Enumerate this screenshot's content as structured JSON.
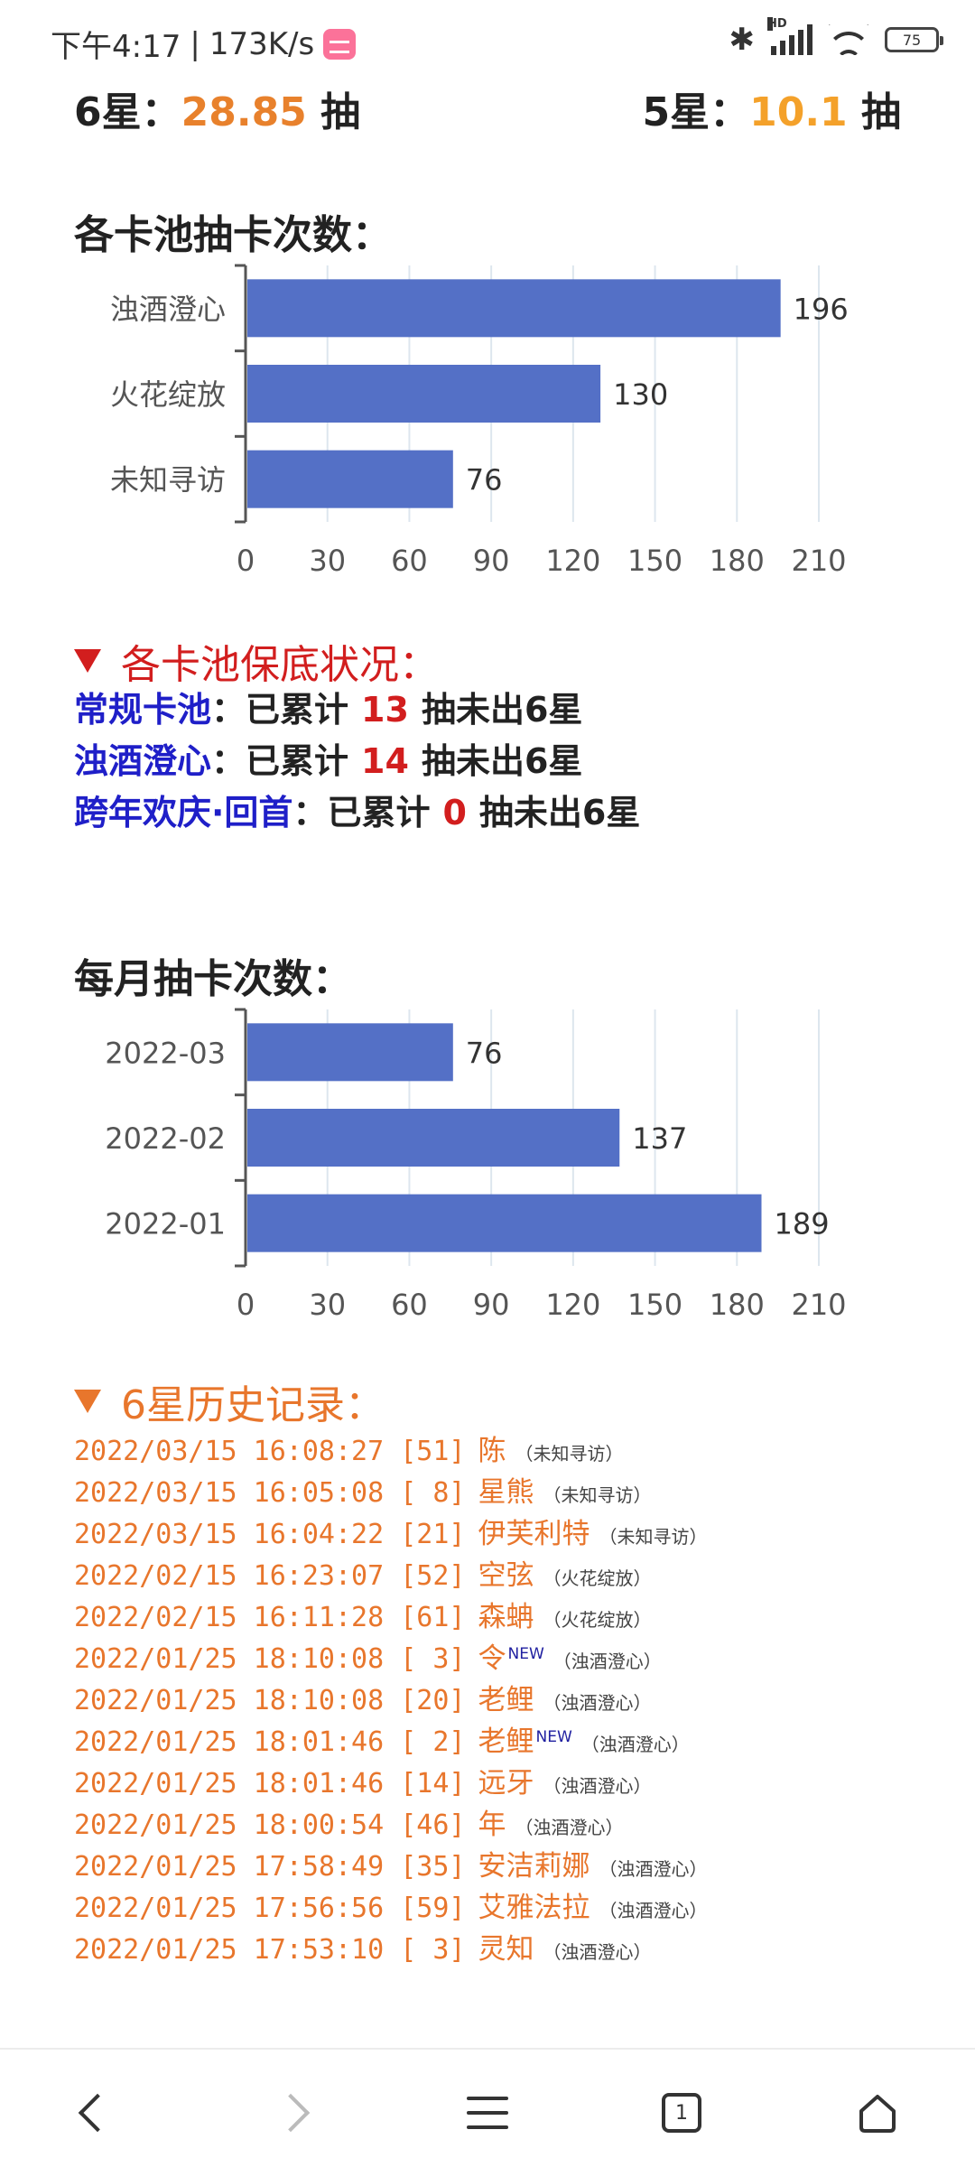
{
  "status_bar": {
    "time": "下午4:17",
    "speed": "173K/s",
    "battery": "75",
    "hd": "HD"
  },
  "summary": {
    "six_label": "6星：",
    "six_value": "28.85",
    "six_unit": "抽",
    "five_label": "5星：",
    "five_value": "10.1",
    "five_unit": "抽"
  },
  "pool_chart": {
    "title": "各卡池抽卡次数："
  },
  "monthly_chart": {
    "title": "每月抽卡次数："
  },
  "chart_data": [
    {
      "type": "bar",
      "orientation": "horizontal",
      "title": "各卡池抽卡次数：",
      "categories": [
        "浊酒澄心",
        "火花绽放",
        "未知寻访"
      ],
      "values": [
        196,
        130,
        76
      ],
      "xlim": [
        0,
        210
      ],
      "xticks": [
        "0",
        "30",
        "60",
        "90",
        "120",
        "150",
        "180",
        "210"
      ],
      "color": "#5470c6",
      "grid": true
    },
    {
      "type": "bar",
      "orientation": "horizontal",
      "title": "每月抽卡次数：",
      "categories": [
        "2022-03",
        "2022-02",
        "2022-01"
      ],
      "values": [
        76,
        137,
        189
      ],
      "xlim": [
        0,
        210
      ],
      "xticks": [
        "0",
        "30",
        "60",
        "90",
        "120",
        "150",
        "180",
        "210"
      ],
      "color": "#5470c6",
      "grid": true
    }
  ],
  "pity": {
    "title": "各卡池保底状况：",
    "prefix": "已累计",
    "suffix": "抽未出6星",
    "colon": "：",
    "rows": [
      {
        "name": "常规卡池",
        "count": "13"
      },
      {
        "name": "浊酒澄心",
        "count": "14"
      },
      {
        "name": "跨年欢庆·回首",
        "count": "0"
      }
    ]
  },
  "history": {
    "title": "6星历史记录：",
    "rows": [
      {
        "time": "2022/03/15 16:08:27 [51]",
        "name": "陈",
        "new": "",
        "pool": "（未知寻访）"
      },
      {
        "time": "2022/03/15 16:05:08 [ 8]",
        "name": "星熊",
        "new": "",
        "pool": "（未知寻访）"
      },
      {
        "time": "2022/03/15 16:04:22 [21]",
        "name": "伊芙利特",
        "new": "",
        "pool": "（未知寻访）"
      },
      {
        "time": "2022/02/15 16:23:07 [52]",
        "name": "空弦",
        "new": "",
        "pool": "（火花绽放）"
      },
      {
        "time": "2022/02/15 16:11:28 [61]",
        "name": "森蚺",
        "new": "",
        "pool": "（火花绽放）"
      },
      {
        "time": "2022/01/25 18:10:08 [ 3]",
        "name": "令",
        "new": "NEW",
        "pool": "（浊酒澄心）"
      },
      {
        "time": "2022/01/25 18:10:08 [20]",
        "name": "老鲤",
        "new": "",
        "pool": "（浊酒澄心）"
      },
      {
        "time": "2022/01/25 18:01:46 [ 2]",
        "name": "老鲤",
        "new": "NEW",
        "pool": "（浊酒澄心）"
      },
      {
        "time": "2022/01/25 18:01:46 [14]",
        "name": "远牙",
        "new": "",
        "pool": "（浊酒澄心）"
      },
      {
        "time": "2022/01/25 18:00:54 [46]",
        "name": "年",
        "new": "",
        "pool": "（浊酒澄心）"
      },
      {
        "time": "2022/01/25 17:58:49 [35]",
        "name": "安洁莉娜",
        "new": "",
        "pool": "（浊酒澄心）"
      },
      {
        "time": "2022/01/25 17:56:56 [59]",
        "name": "艾雅法拉",
        "new": "",
        "pool": "（浊酒澄心）"
      },
      {
        "time": "2022/01/25 17:53:10 [ 3]",
        "name": "灵知",
        "new": "",
        "pool": "（浊酒澄心）"
      }
    ]
  },
  "nav": {
    "tab_count": "1",
    "icons": [
      "back-icon",
      "forward-icon",
      "menu-icon",
      "tabs-icon",
      "home-icon"
    ]
  }
}
